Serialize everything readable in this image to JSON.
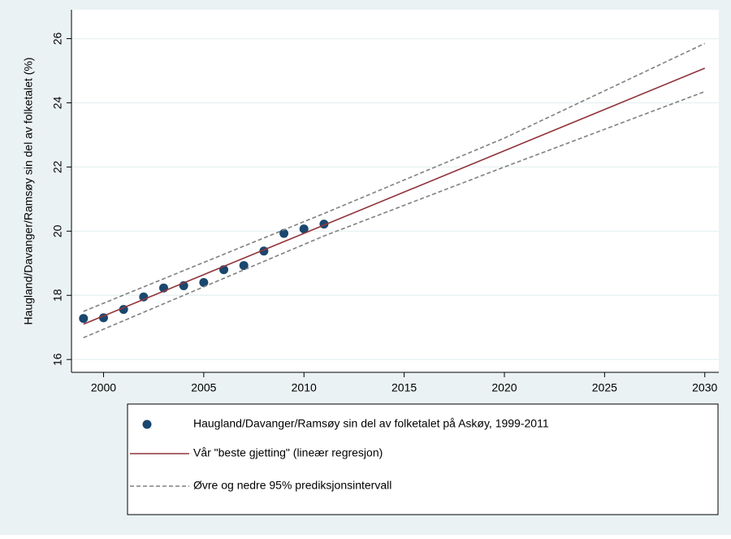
{
  "chart_data": {
    "type": "line",
    "ylabel": "Haugland/Davanger/Ramsøy sin del av folketalet (%)",
    "xlim": [
      1998.4,
      2030.7
    ],
    "ylim": [
      15.6,
      26.9
    ],
    "xticks": [
      2000,
      2005,
      2010,
      2015,
      2020,
      2025,
      2030
    ],
    "yticks": [
      16,
      18,
      20,
      22,
      24,
      26
    ],
    "grid": true,
    "series": [
      {
        "name": "Haugland/Davanger/Ramsøy sin del av folketalet på Askøy, 1999-2011",
        "style": "markers",
        "color": "#1a476f",
        "x": [
          1999,
          2000,
          2001,
          2002,
          2003,
          2004,
          2005,
          2006,
          2007,
          2008,
          2009,
          2010,
          2011
        ],
        "values": [
          17.28,
          17.3,
          17.56,
          17.95,
          18.23,
          18.3,
          18.4,
          18.8,
          18.93,
          19.38,
          19.93,
          20.07,
          20.22
        ]
      },
      {
        "name": "Vår \"beste gjetting\" (lineær regresjon)",
        "style": "solid",
        "color": "#90353b",
        "x": [
          1999,
          2030
        ],
        "values": [
          17.1,
          25.08
        ]
      },
      {
        "name": "Øvre og nedre 95% prediksjonsintervall",
        "style": "dashed",
        "color": "#808080",
        "x": [
          1999,
          2011,
          2020,
          2030
        ],
        "upper": [
          17.5,
          20.55,
          22.9,
          25.85
        ],
        "lower": [
          16.68,
          19.85,
          22.0,
          24.35
        ]
      }
    ]
  }
}
